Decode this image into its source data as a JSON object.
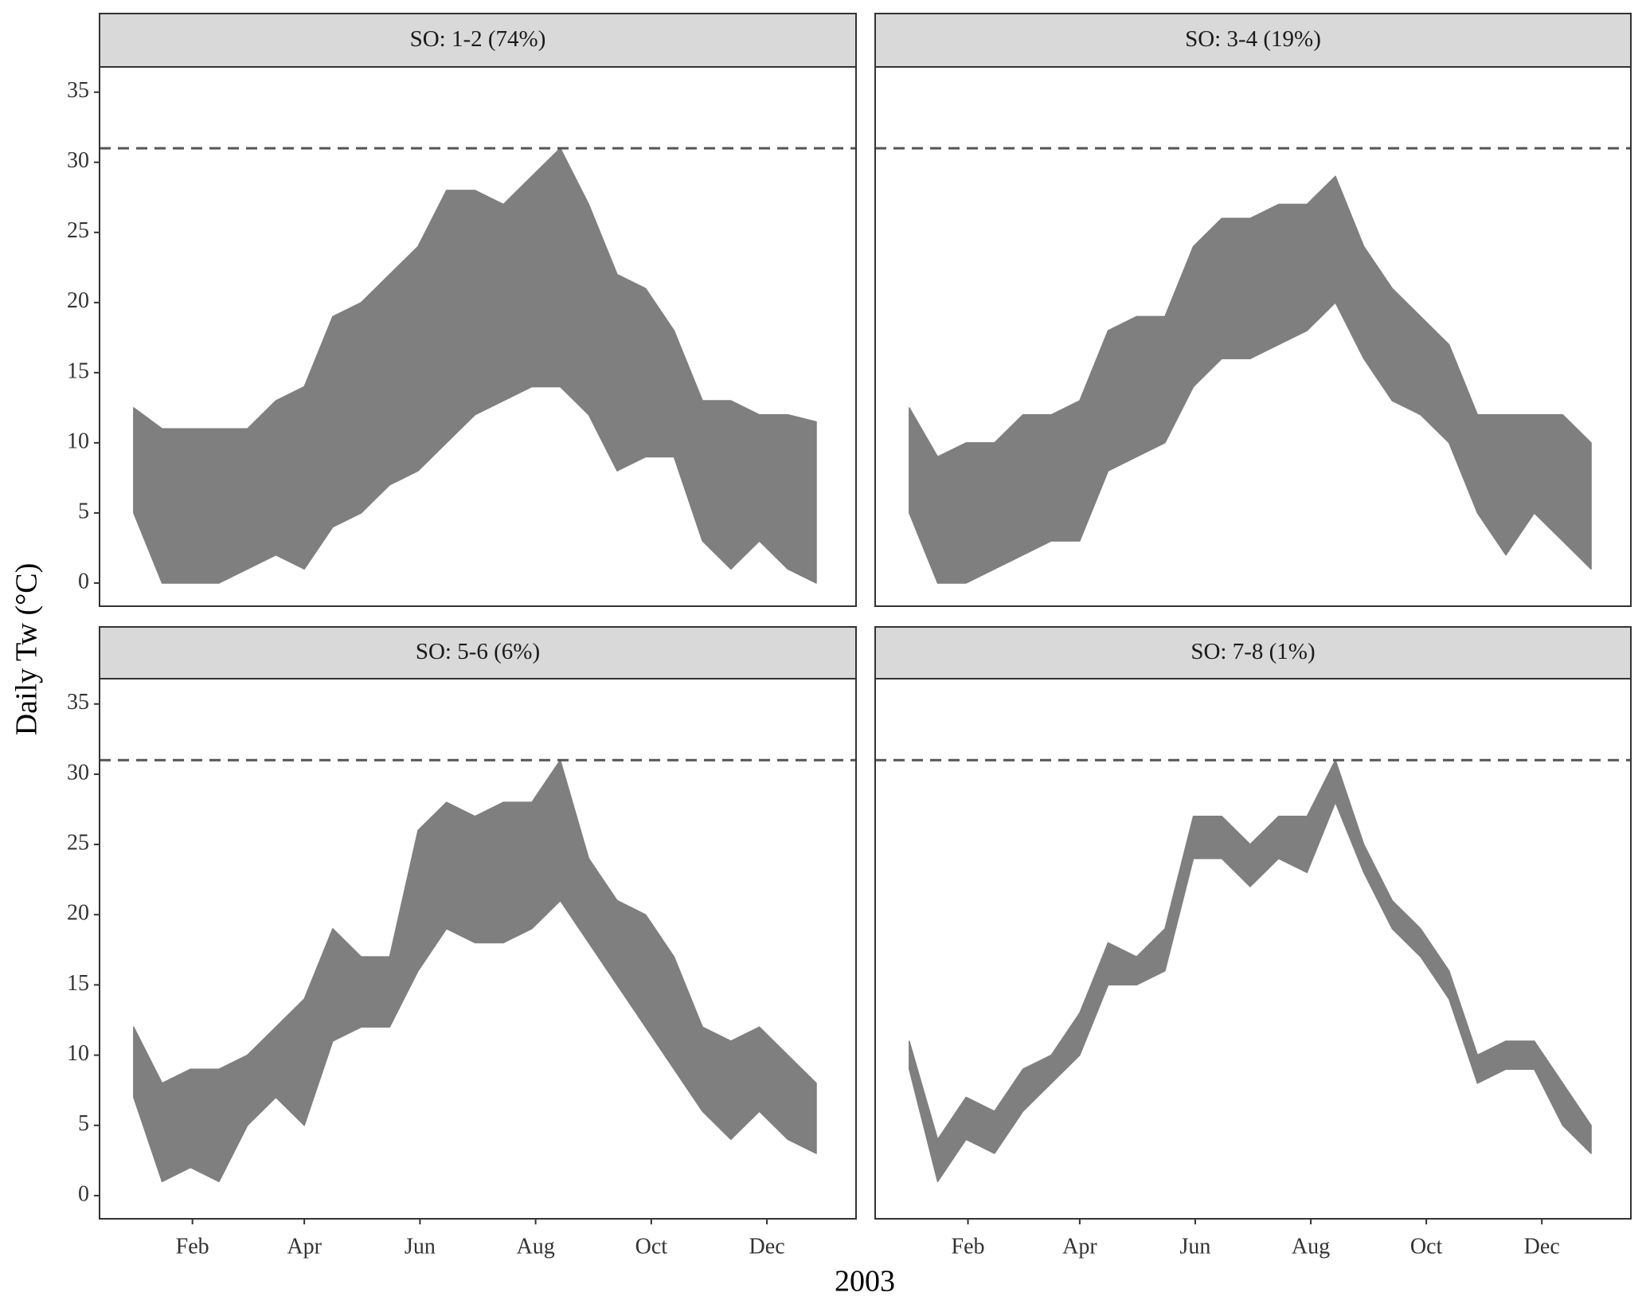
{
  "axis_labels": {
    "x": "2003",
    "y": "Daily Tw (°C)"
  },
  "chart_data": [
    {
      "type": "range",
      "title": "SO: 1-2 (74%)",
      "color": "#7f7f7f",
      "hline": 31,
      "xlim": [
        -17,
        382
      ],
      "ylim": [
        -1.65,
        36.8
      ],
      "yticks": [
        0,
        5,
        10,
        15,
        20,
        25,
        30,
        35
      ],
      "x": [
        1,
        16,
        31,
        46,
        61,
        76,
        91,
        106,
        121,
        136,
        151,
        166,
        181,
        196,
        211,
        226,
        241,
        256,
        271,
        286,
        301,
        316,
        331,
        346,
        361
      ],
      "low": [
        5,
        0,
        0,
        0,
        1,
        2,
        1,
        4,
        5,
        7,
        8,
        10,
        12,
        13,
        14,
        14,
        12,
        8,
        9,
        9,
        3,
        1,
        3,
        1,
        0
      ],
      "high": [
        12.5,
        11,
        11,
        11,
        11,
        13,
        14,
        19,
        20,
        22,
        24,
        28,
        28,
        27,
        29,
        31,
        27,
        22,
        21,
        18,
        13,
        13,
        12,
        12,
        11.5
      ]
    },
    {
      "type": "range",
      "title": "SO: 3-4 (19%)",
      "color": "#7f7f7f",
      "hline": 31,
      "xlim": [
        -17,
        382
      ],
      "ylim": [
        -1.65,
        36.8
      ],
      "x": [
        1,
        16,
        31,
        46,
        61,
        76,
        91,
        106,
        121,
        136,
        151,
        166,
        181,
        196,
        211,
        226,
        241,
        256,
        271,
        286,
        301,
        316,
        331,
        346,
        361
      ],
      "low": [
        5,
        0,
        0,
        1,
        2,
        3,
        3,
        8,
        9,
        10,
        14,
        16,
        16,
        17,
        18,
        20,
        16,
        13,
        12,
        10,
        5,
        2,
        5,
        3,
        1
      ],
      "high": [
        12.5,
        9,
        10,
        10,
        12,
        12,
        13,
        18,
        19,
        19,
        24,
        26,
        26,
        27,
        27,
        29,
        24,
        21,
        19,
        17,
        12,
        12,
        12,
        12,
        10
      ]
    },
    {
      "type": "range",
      "title": "SO: 5-6 (6%)",
      "color": "#7f7f7f",
      "hline": 31,
      "xlim": [
        -17,
        382
      ],
      "ylim": [
        -1.65,
        36.8
      ],
      "yticks": [
        0,
        5,
        10,
        15,
        20,
        25,
        30,
        35
      ],
      "xticks": [
        {
          "value": 32,
          "label": "Feb"
        },
        {
          "value": 91,
          "label": "Apr"
        },
        {
          "value": 152,
          "label": "Jun"
        },
        {
          "value": 213,
          "label": "Aug"
        },
        {
          "value": 274,
          "label": "Oct"
        },
        {
          "value": 335,
          "label": "Dec"
        }
      ],
      "x": [
        1,
        16,
        31,
        46,
        61,
        76,
        91,
        106,
        121,
        136,
        151,
        166,
        181,
        196,
        211,
        226,
        241,
        256,
        271,
        286,
        301,
        316,
        331,
        346,
        361
      ],
      "low": [
        7,
        1,
        2,
        1,
        5,
        7,
        5,
        11,
        12,
        12,
        16,
        19,
        18,
        18,
        19,
        21,
        18,
        15,
        12,
        9,
        6,
        4,
        6,
        4,
        3
      ],
      "high": [
        12,
        8,
        9,
        9,
        10,
        12,
        14,
        19,
        17,
        17,
        26,
        28,
        27,
        28,
        28,
        31,
        24,
        21,
        20,
        17,
        12,
        11,
        12,
        10,
        8
      ]
    },
    {
      "type": "range",
      "title": "SO: 7-8 (1%)",
      "color": "#7f7f7f",
      "hline": 31,
      "xlim": [
        -17,
        382
      ],
      "ylim": [
        -1.65,
        36.8
      ],
      "xticks": [
        {
          "value": 32,
          "label": "Feb"
        },
        {
          "value": 91,
          "label": "Apr"
        },
        {
          "value": 152,
          "label": "Jun"
        },
        {
          "value": 213,
          "label": "Aug"
        },
        {
          "value": 274,
          "label": "Oct"
        },
        {
          "value": 335,
          "label": "Dec"
        }
      ],
      "x": [
        1,
        16,
        31,
        46,
        61,
        76,
        91,
        106,
        121,
        136,
        151,
        166,
        181,
        196,
        211,
        226,
        241,
        256,
        271,
        286,
        301,
        316,
        331,
        346,
        361
      ],
      "low": [
        9,
        1,
        4,
        3,
        6,
        8,
        10,
        15,
        15,
        16,
        24,
        24,
        22,
        24,
        23,
        28,
        23,
        19,
        17,
        14,
        8,
        9,
        9,
        5,
        3
      ],
      "high": [
        11,
        4,
        7,
        6,
        9,
        10,
        13,
        18,
        17,
        19,
        27,
        27,
        25,
        27,
        27,
        31,
        25,
        21,
        19,
        16,
        10,
        11,
        11,
        8,
        5
      ]
    }
  ]
}
